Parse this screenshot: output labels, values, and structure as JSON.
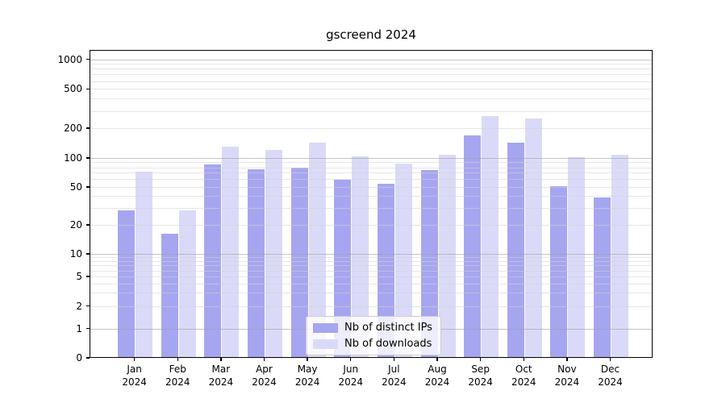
{
  "chart_data": {
    "type": "bar",
    "title": "gscreend 2024",
    "categories": [
      "Jan",
      "Feb",
      "Mar",
      "Apr",
      "May",
      "Jun",
      "Jul",
      "Aug",
      "Sep",
      "Oct",
      "Nov",
      "Dec"
    ],
    "category_year": "2024",
    "series": [
      {
        "name": "Nb of distinct IPs",
        "color": "#a6a6f0",
        "values": [
          28,
          16,
          84,
          75,
          78,
          58,
          53,
          74,
          165,
          140,
          50,
          38
        ]
      },
      {
        "name": "Nb of downloads",
        "color": "#dadaf8",
        "values": [
          70,
          28,
          127,
          118,
          141,
          102,
          85,
          105,
          260,
          245,
          100,
          106
        ]
      }
    ],
    "yscale": "symlog",
    "yticks": [
      0,
      1,
      2,
      5,
      10,
      20,
      50,
      100,
      200,
      500,
      1000
    ],
    "ylim": [
      0,
      1240
    ],
    "xlabel": "",
    "ylabel": "",
    "grid": true,
    "legend_position": "lower center",
    "colors": {
      "spine": "#000000",
      "major_grid": "#c6c6c6",
      "minor_grid": "#e4e4e4",
      "legend_border": "#cccccc"
    }
  }
}
